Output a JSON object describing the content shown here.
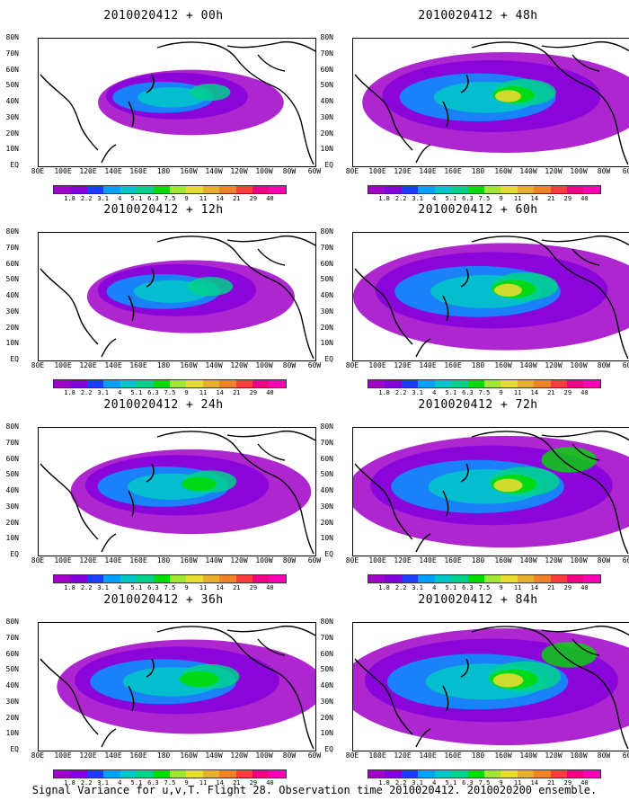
{
  "panels": [
    {
      "title": "2010020412 + 00h",
      "level": 0.1
    },
    {
      "title": "2010020412 + 48h",
      "level": 0.65
    },
    {
      "title": "2010020412 + 12h",
      "level": 0.22
    },
    {
      "title": "2010020412 + 60h",
      "level": 0.75
    },
    {
      "title": "2010020412 + 24h",
      "level": 0.4
    },
    {
      "title": "2010020412 + 72h",
      "level": 0.82
    },
    {
      "title": "2010020412 + 36h",
      "level": 0.55
    },
    {
      "title": "2010020412 + 84h",
      "level": 0.9
    }
  ],
  "lat_labels": [
    "80N",
    "70N",
    "60N",
    "50N",
    "40N",
    "30N",
    "20N",
    "10N",
    "EQ"
  ],
  "lon_labels": [
    "80E",
    "100E",
    "120E",
    "140E",
    "160E",
    "180",
    "160W",
    "140W",
    "120W",
    "100W",
    "80W",
    "60W"
  ],
  "colorbar": {
    "levels": [
      "1.8",
      "2.2",
      "3.1",
      "4",
      "5.1",
      "6.3",
      "7.5",
      "9",
      "11",
      "14",
      "21",
      "29",
      "40"
    ],
    "colors": [
      "#a000c8",
      "#8200dc",
      "#1e3cff",
      "#00a0ff",
      "#00c8c8",
      "#00d28c",
      "#00dc00",
      "#a0e632",
      "#e6dc32",
      "#e6af2d",
      "#f08228",
      "#fa3c3c",
      "#f00082",
      "#ff00b4"
    ]
  },
  "caption": "Signal Variance for u,v,T. Flight 28. Observation time 2010020412. 2010020200 ensemble."
}
